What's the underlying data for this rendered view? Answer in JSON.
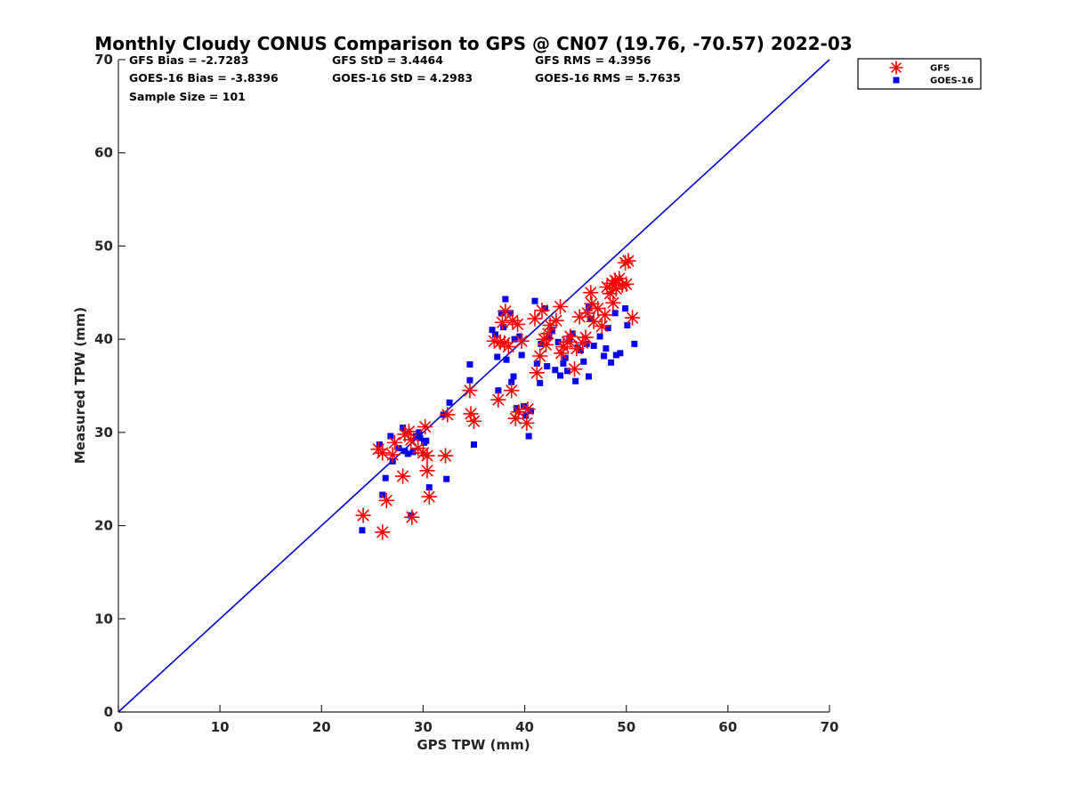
{
  "chart_data": {
    "type": "scatter",
    "title": "Monthly Cloudy CONUS Comparison to GPS @ CN07 (19.76, -70.57) 2022-03",
    "xlabel": "GPS TPW (mm)",
    "ylabel": "Measured TPW (mm)",
    "xlim": [
      0,
      70
    ],
    "ylim": [
      0,
      70
    ],
    "xticks": [
      "0",
      "10",
      "20",
      "30",
      "40",
      "50",
      "60",
      "70"
    ],
    "yticks": [
      "0",
      "10",
      "20",
      "30",
      "40",
      "50",
      "60",
      "70"
    ],
    "grid": false,
    "legend_position": "outside-top-right",
    "reference_line": {
      "x": [
        0,
        70
      ],
      "y": [
        0,
        70
      ],
      "color": "#0000cc"
    },
    "stats": [
      [
        "GFS Bias = -2.7283",
        "GFS StD = 3.4464",
        "GFS RMS = 4.3956"
      ],
      [
        "GOES-16 Bias = -3.8396",
        "GOES-16 StD = 4.2983",
        "GOES-16 RMS = 5.7635"
      ],
      [
        "Sample Size = 101",
        "",
        ""
      ]
    ],
    "series": [
      {
        "name": "GFS",
        "marker": "asterisk",
        "color": "#ff0000",
        "points": [
          [
            24.1,
            21.1
          ],
          [
            25.6,
            28.2
          ],
          [
            26.0,
            27.8
          ],
          [
            26.0,
            19.3
          ],
          [
            26.4,
            22.7
          ],
          [
            27.0,
            27.6
          ],
          [
            27.2,
            28.9
          ],
          [
            28.0,
            25.3
          ],
          [
            28.2,
            29.8
          ],
          [
            28.6,
            30.1
          ],
          [
            28.8,
            29.2
          ],
          [
            28.9,
            20.9
          ],
          [
            29.5,
            28.3
          ],
          [
            30.0,
            27.8
          ],
          [
            30.2,
            30.6
          ],
          [
            30.4,
            27.5
          ],
          [
            30.4,
            25.9
          ],
          [
            30.6,
            23.1
          ],
          [
            32.2,
            27.5
          ],
          [
            32.4,
            31.9
          ],
          [
            34.6,
            34.5
          ],
          [
            34.7,
            32.0
          ],
          [
            35.0,
            31.2
          ],
          [
            37.0,
            39.8
          ],
          [
            37.4,
            33.5
          ],
          [
            37.6,
            39.7
          ],
          [
            37.8,
            41.8
          ],
          [
            38.0,
            39.6
          ],
          [
            38.1,
            43.0
          ],
          [
            38.4,
            39.2
          ],
          [
            38.7,
            34.5
          ],
          [
            38.8,
            42.0
          ],
          [
            39.1,
            31.5
          ],
          [
            39.3,
            41.6
          ],
          [
            39.4,
            32.2
          ],
          [
            39.7,
            39.8
          ],
          [
            40.2,
            31.0
          ],
          [
            40.3,
            32.5
          ],
          [
            41.0,
            42.2
          ],
          [
            41.2,
            36.4
          ],
          [
            41.5,
            38.2
          ],
          [
            41.7,
            43.1
          ],
          [
            41.9,
            40.0
          ],
          [
            42.1,
            39.4
          ],
          [
            42.3,
            40.6
          ],
          [
            42.5,
            41.5
          ],
          [
            43.1,
            42.0
          ],
          [
            43.5,
            43.5
          ],
          [
            43.6,
            38.5
          ],
          [
            43.8,
            39.2
          ],
          [
            44.2,
            39.7
          ],
          [
            44.5,
            40.3
          ],
          [
            44.9,
            36.8
          ],
          [
            45.1,
            39.0
          ],
          [
            45.4,
            42.4
          ],
          [
            45.7,
            39.6
          ],
          [
            46.0,
            40.2
          ],
          [
            46.2,
            42.8
          ],
          [
            46.5,
            45.0
          ],
          [
            46.6,
            43.8
          ],
          [
            46.8,
            41.9
          ],
          [
            47.2,
            43.3
          ],
          [
            47.6,
            41.4
          ],
          [
            47.9,
            42.6
          ],
          [
            48.1,
            45.6
          ],
          [
            48.4,
            44.9
          ],
          [
            48.6,
            46.0
          ],
          [
            48.7,
            43.9
          ],
          [
            48.9,
            46.3
          ],
          [
            49.0,
            45.4
          ],
          [
            49.3,
            46.5
          ],
          [
            49.6,
            45.8
          ],
          [
            49.9,
            48.2
          ],
          [
            50.0,
            45.9
          ],
          [
            50.2,
            48.4
          ],
          [
            50.6,
            42.3
          ]
        ]
      },
      {
        "name": "GOES-16",
        "marker": "square",
        "color": "#0000ee",
        "points": [
          [
            24.0,
            19.5
          ],
          [
            25.7,
            28.7
          ],
          [
            26.0,
            23.3
          ],
          [
            26.3,
            25.1
          ],
          [
            26.8,
            29.6
          ],
          [
            27.0,
            26.9
          ],
          [
            27.6,
            28.3
          ],
          [
            28.0,
            30.5
          ],
          [
            28.2,
            28.0
          ],
          [
            28.5,
            27.7
          ],
          [
            28.8,
            21.1
          ],
          [
            29.0,
            27.9
          ],
          [
            29.3,
            29.6
          ],
          [
            29.6,
            30.0
          ],
          [
            29.7,
            29.4
          ],
          [
            30.1,
            28.9
          ],
          [
            30.3,
            29.1
          ],
          [
            30.6,
            24.1
          ],
          [
            32.0,
            31.9
          ],
          [
            32.3,
            25.0
          ],
          [
            32.6,
            33.2
          ],
          [
            34.6,
            37.3
          ],
          [
            34.6,
            35.6
          ],
          [
            35.0,
            28.7
          ],
          [
            36.8,
            41.0
          ],
          [
            37.1,
            40.5
          ],
          [
            37.3,
            38.1
          ],
          [
            37.4,
            34.5
          ],
          [
            37.7,
            42.8
          ],
          [
            37.9,
            41.3
          ],
          [
            38.1,
            44.3
          ],
          [
            38.2,
            37.8
          ],
          [
            38.6,
            42.8
          ],
          [
            38.7,
            35.4
          ],
          [
            38.9,
            36.0
          ],
          [
            39.0,
            40.0
          ],
          [
            39.2,
            32.6
          ],
          [
            39.5,
            40.3
          ],
          [
            39.7,
            38.3
          ],
          [
            39.9,
            32.8
          ],
          [
            40.1,
            31.8
          ],
          [
            40.4,
            29.6
          ],
          [
            40.6,
            32.3
          ],
          [
            41.0,
            44.1
          ],
          [
            41.2,
            37.4
          ],
          [
            41.5,
            35.3
          ],
          [
            41.6,
            39.5
          ],
          [
            42.0,
            43.3
          ],
          [
            42.2,
            37.1
          ],
          [
            42.4,
            40.2
          ],
          [
            42.7,
            41.0
          ],
          [
            43.0,
            36.7
          ],
          [
            43.3,
            39.7
          ],
          [
            43.5,
            36.1
          ],
          [
            43.8,
            37.4
          ],
          [
            44.0,
            38.0
          ],
          [
            44.2,
            36.6
          ],
          [
            44.4,
            40.1
          ],
          [
            44.7,
            40.6
          ],
          [
            45.0,
            35.5
          ],
          [
            45.2,
            39.1
          ],
          [
            45.5,
            38.8
          ],
          [
            45.8,
            37.6
          ],
          [
            46.1,
            39.5
          ],
          [
            46.3,
            43.4
          ],
          [
            46.3,
            36.0
          ],
          [
            46.5,
            42.2
          ],
          [
            46.8,
            39.3
          ],
          [
            47.4,
            40.3
          ],
          [
            47.8,
            38.2
          ],
          [
            48.0,
            39.0
          ],
          [
            48.2,
            41.2
          ],
          [
            48.5,
            37.5
          ],
          [
            48.9,
            42.8
          ],
          [
            49.0,
            38.3
          ],
          [
            49.4,
            38.5
          ],
          [
            49.9,
            43.3
          ],
          [
            50.1,
            41.5
          ],
          [
            50.8,
            39.5
          ]
        ]
      }
    ]
  }
}
